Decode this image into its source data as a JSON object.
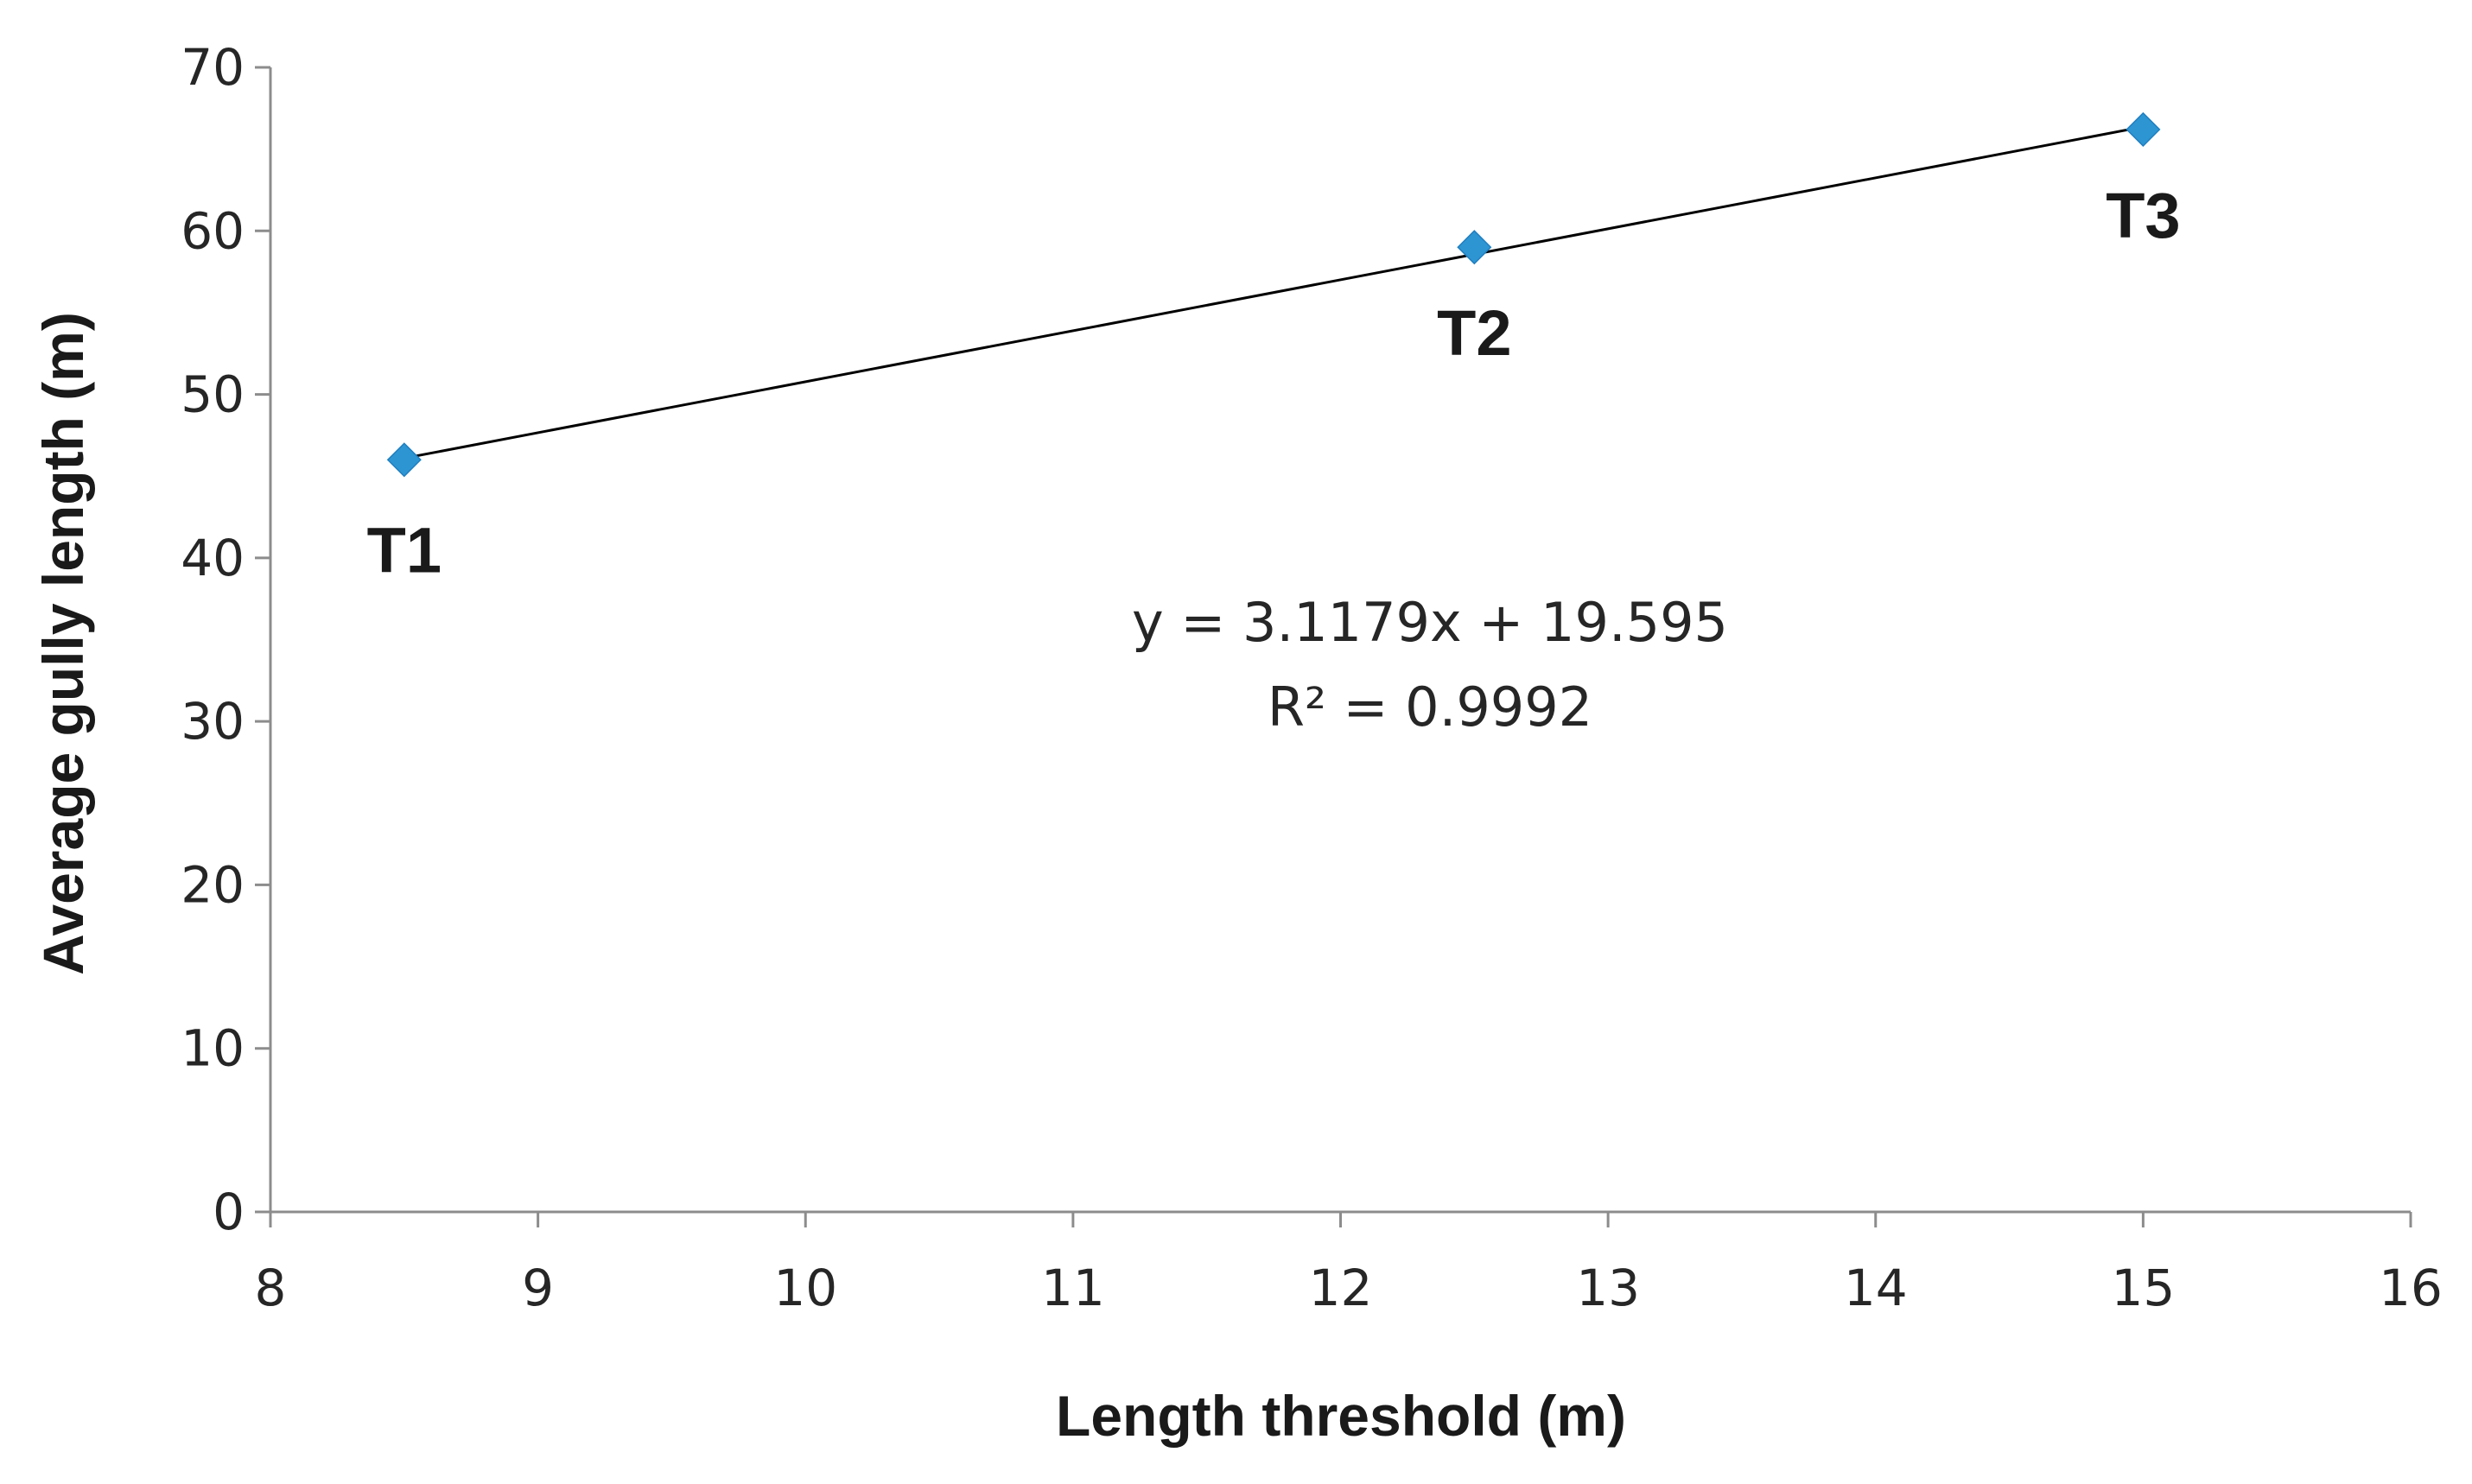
{
  "chart_data": {
    "type": "scatter",
    "xlabel": "Length threshold (m)",
    "ylabel": "Average gully length (m)",
    "xlim": [
      8,
      16
    ],
    "ylim": [
      0,
      70
    ],
    "x_ticks": [
      8,
      9,
      10,
      11,
      12,
      13,
      14,
      15,
      16
    ],
    "y_ticks": [
      0,
      10,
      20,
      30,
      40,
      50,
      60,
      70
    ],
    "grid": false,
    "legend": "none",
    "series": [
      {
        "color": "#2e95d3",
        "marker": "diamond",
        "points": [
          {
            "x": 8.5,
            "y": 46.0,
            "label": "T1"
          },
          {
            "x": 12.5,
            "y": 59.0,
            "label": "T2"
          },
          {
            "x": 15.0,
            "y": 66.2,
            "label": "T3"
          }
        ]
      }
    ],
    "trendline": {
      "type": "linear",
      "slope": 3.1179,
      "intercept": 19.595,
      "color": "#000000",
      "equation": "y = 3.1179x + 19.595",
      "r_squared": "R² = 0.9992"
    }
  }
}
